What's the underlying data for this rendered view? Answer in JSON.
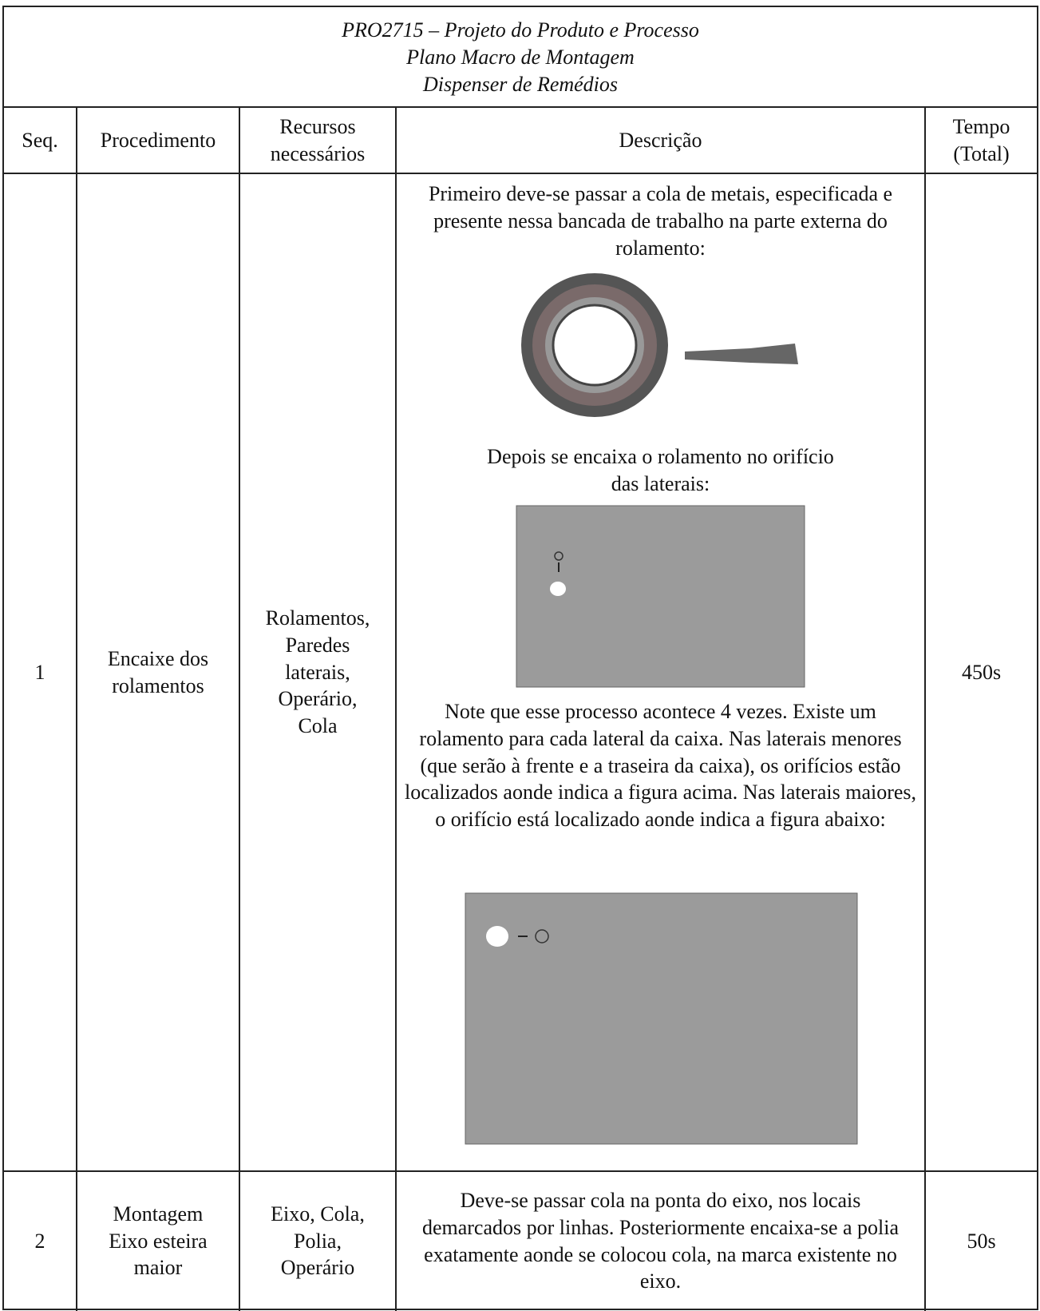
{
  "header": {
    "title": [
      "PRO2715 – Projeto do Produto e Processo",
      "Plano Macro de Montagem",
      "Dispenser de Remédios"
    ]
  },
  "table": {
    "headers": [
      "Seq.",
      "Procedimento",
      "Recursos necessários",
      "Descrição",
      "Tempo (Total)"
    ],
    "rows": [
      {
        "seq": "1",
        "procedure": "Encaixe dos rolamentos",
        "resources": "Rolamentos, Paredes laterais, Operário, Cola",
        "description": [
          "Primeiro deve-se passar a cola de metais, especificada e presente nessa bancada de trabalho na parte externa do rolamento:",
          "Depois se encaixa o rolamento no orifício das laterais:",
          "Note que esse processo acontece 4 vezes. Existe um rolamento para cada lateral da caixa. Nas laterais menores (que serão à frente e a traseira da caixa), os orifícios estão localizados aonde indica a figura acima. Nas laterais maiores, o orifício está localizado aonde indica a figura abaixo:"
        ],
        "time": "450s"
      },
      {
        "seq": "2",
        "procedure": "Montagem Eixo esteira maior",
        "resources": "Eixo, Cola, Polia, Operário",
        "description": [
          "Deve-se passar cola na ponta do eixo, nos locais demarcados por linhas. Posteriormente encaixa-se a polia exatamente aonde se colocou cola, na marca existente no eixo."
        ],
        "time": "50s"
      }
    ]
  }
}
